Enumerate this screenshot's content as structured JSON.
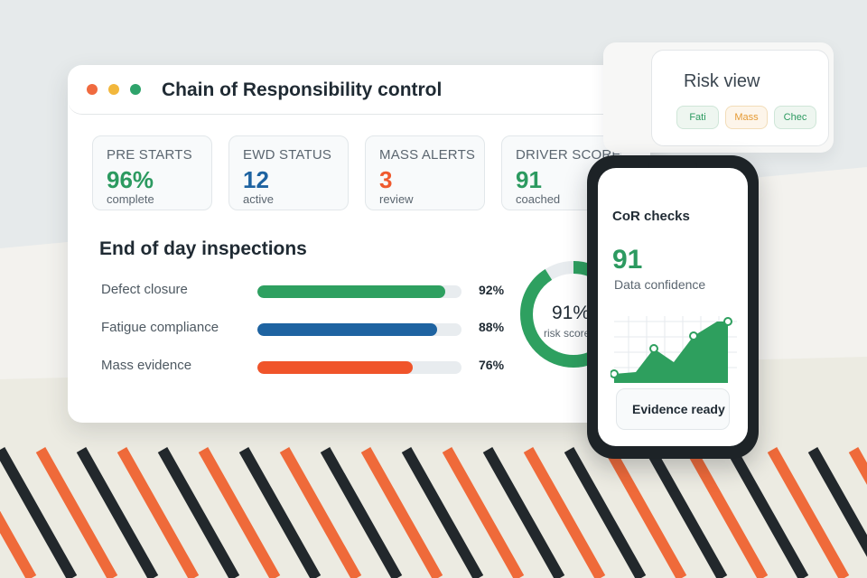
{
  "colors": {
    "green": "#2c9a60",
    "blue": "#1e63a1",
    "orange": "#ef5a2e",
    "stripe_dark": "#22282c",
    "stripe_orange": "#ef6a3a"
  },
  "window": {
    "title": "Chain of Responsibility control",
    "controls": [
      "close-dot",
      "minimize-dot",
      "maximize-dot"
    ]
  },
  "stats": [
    {
      "label": "PRE STARTS",
      "value": "96%",
      "sub": "complete"
    },
    {
      "label": "EWD STATUS",
      "value": "12",
      "sub": "active"
    },
    {
      "label": "MASS ALERTS",
      "value": "3",
      "sub": "review"
    },
    {
      "label": "DRIVER SCORE",
      "value": "91",
      "sub": "coached"
    }
  ],
  "inspections": {
    "title": "End of day inspections",
    "items": [
      {
        "label": "Defect closure",
        "pct_text": "92%",
        "value": 92
      },
      {
        "label": "Fatigue compliance",
        "pct_text": "88%",
        "value": 88
      },
      {
        "label": "Mass evidence",
        "pct_text": "76%",
        "value": 76
      }
    ]
  },
  "donut": {
    "pct_text": "91%",
    "value": 91,
    "label": "risk score"
  },
  "risk_view": {
    "title": "Risk view",
    "tags": [
      "Fati",
      "Mass",
      "Chec"
    ]
  },
  "phone": {
    "title": "CoR checks",
    "value": "91",
    "sub": "Data confidence",
    "button": "Evidence ready"
  }
}
